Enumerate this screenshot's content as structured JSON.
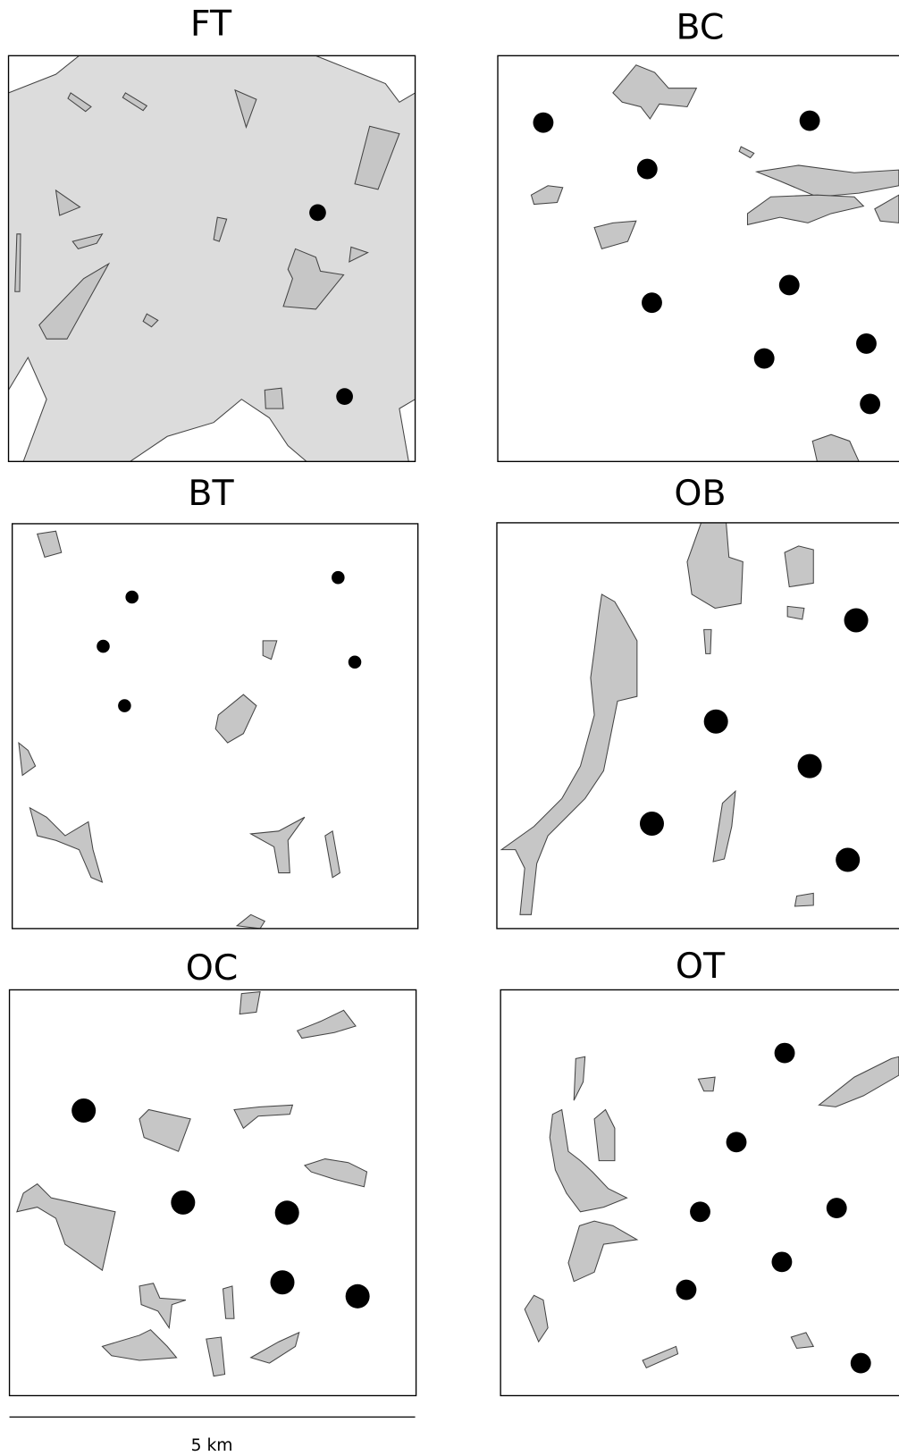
{
  "panels": [
    {
      "title": "FT"
    },
    {
      "title": "BC"
    },
    {
      "title": "BT"
    },
    {
      "title": "OB"
    },
    {
      "title": "OC"
    },
    {
      "title": "OT"
    }
  ],
  "scale_bar": {
    "label": "5 km"
  }
}
